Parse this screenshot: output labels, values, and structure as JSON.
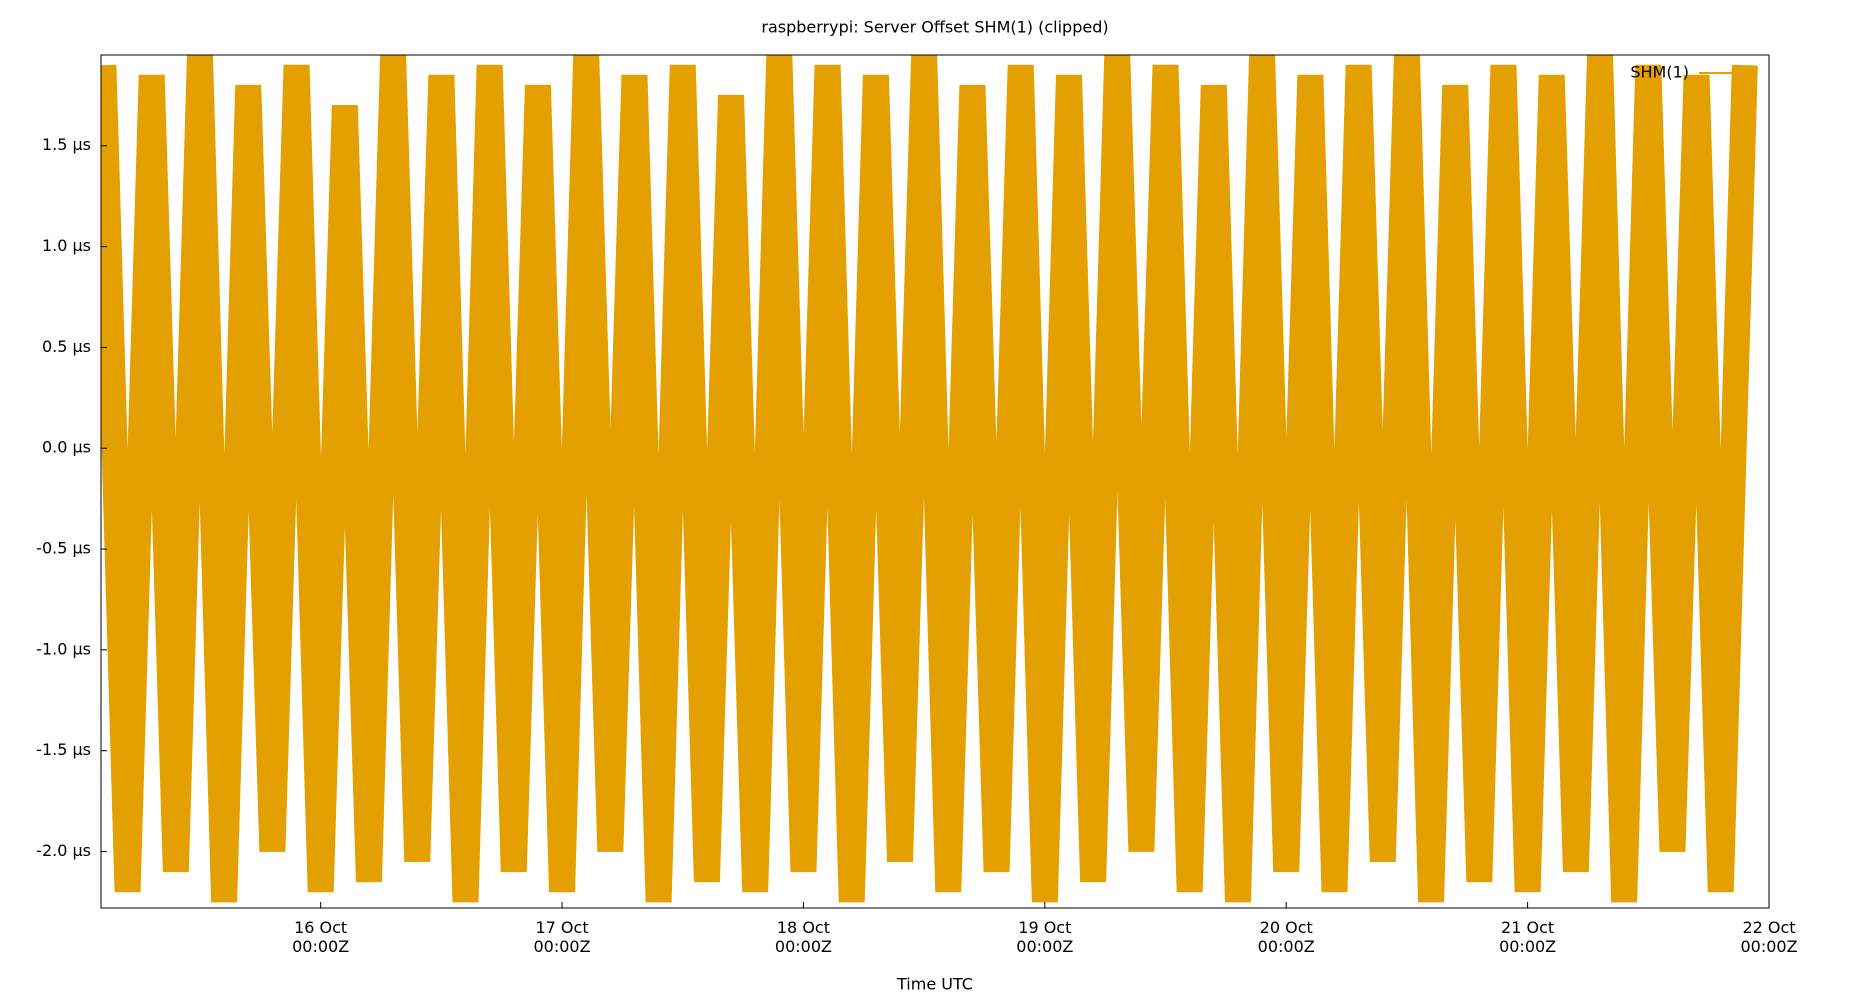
{
  "chart_data": {
    "type": "line",
    "title": "raspberrypi: Server Offset SHM(1) (clipped)",
    "x_label": "Time UTC",
    "xlim": [
      15.09,
      22.0
    ],
    "xticks": [
      {
        "value": 16,
        "label": "16 Oct\n00:00Z"
      },
      {
        "value": 17,
        "label": "17 Oct\n00:00Z"
      },
      {
        "value": 18,
        "label": "18 Oct\n00:00Z"
      },
      {
        "value": 19,
        "label": "19 Oct\n00:00Z"
      },
      {
        "value": 20,
        "label": "20 Oct\n00:00Z"
      },
      {
        "value": 21,
        "label": "21 Oct\n00:00Z"
      },
      {
        "value": 22,
        "label": "22 Oct\n00:00Z"
      }
    ],
    "ylim": [
      -2.28,
      1.95
    ],
    "yticks": [
      {
        "value": -2.0,
        "label": "-2.0 µs"
      },
      {
        "value": -1.5,
        "label": "-1.5 µs"
      },
      {
        "value": -1.0,
        "label": "-1.0 µs"
      },
      {
        "value": -0.5,
        "label": "-0.5 µs"
      },
      {
        "value": 0.0,
        "label": "0.0 µs"
      },
      {
        "value": 0.5,
        "label": "0.5 µs"
      },
      {
        "value": 1.0,
        "label": "1.0 µs"
      },
      {
        "value": 1.5,
        "label": "1.5 µs"
      }
    ],
    "legend": "upper right",
    "x": [
      15.1,
      15.2,
      15.3,
      15.4,
      15.5,
      15.6,
      15.7,
      15.8,
      15.9,
      16.0,
      16.1,
      16.2,
      16.3,
      16.4,
      16.5,
      16.6,
      16.7,
      16.8,
      16.9,
      17.0,
      17.1,
      17.2,
      17.3,
      17.4,
      17.5,
      17.6,
      17.7,
      17.8,
      17.9,
      18.0,
      18.1,
      18.2,
      18.3,
      18.4,
      18.5,
      18.6,
      18.7,
      18.8,
      18.9,
      19.0,
      19.1,
      19.2,
      19.3,
      19.4,
      19.5,
      19.6,
      19.7,
      19.8,
      19.9,
      20.0,
      20.1,
      20.2,
      20.3,
      20.4,
      20.5,
      20.6,
      20.7,
      20.8,
      20.9,
      21.0,
      21.1,
      21.2,
      21.3,
      21.4,
      21.5,
      21.6,
      21.7,
      21.8,
      21.9
    ],
    "series": [
      {
        "name": "SHM(1)",
        "color": "#e4a000",
        "values": [
          1.9,
          -2.2,
          1.85,
          -2.1,
          1.95,
          -2.25,
          1.8,
          -2.0,
          1.9,
          -2.2,
          1.7,
          -2.15,
          1.95,
          -2.05,
          1.85,
          -2.25,
          1.9,
          -2.1,
          1.8,
          -2.2,
          1.95,
          -2.0,
          1.85,
          -2.25,
          1.9,
          -2.15,
          1.75,
          -2.2,
          1.95,
          -2.1,
          1.9,
          -2.25,
          1.85,
          -2.05,
          1.95,
          -2.2,
          1.8,
          -2.1,
          1.9,
          -2.25,
          1.85,
          -2.15,
          1.95,
          -2.0,
          1.9,
          -2.2,
          1.8,
          -2.25,
          1.95,
          -2.1,
          1.85,
          -2.2,
          1.9,
          -2.05,
          1.95,
          -2.25,
          1.8,
          -2.15,
          1.9,
          -2.2,
          1.85,
          -2.1,
          1.95,
          -2.25,
          1.9,
          -2.0,
          1.85,
          -2.2,
          1.9
        ]
      }
    ]
  }
}
